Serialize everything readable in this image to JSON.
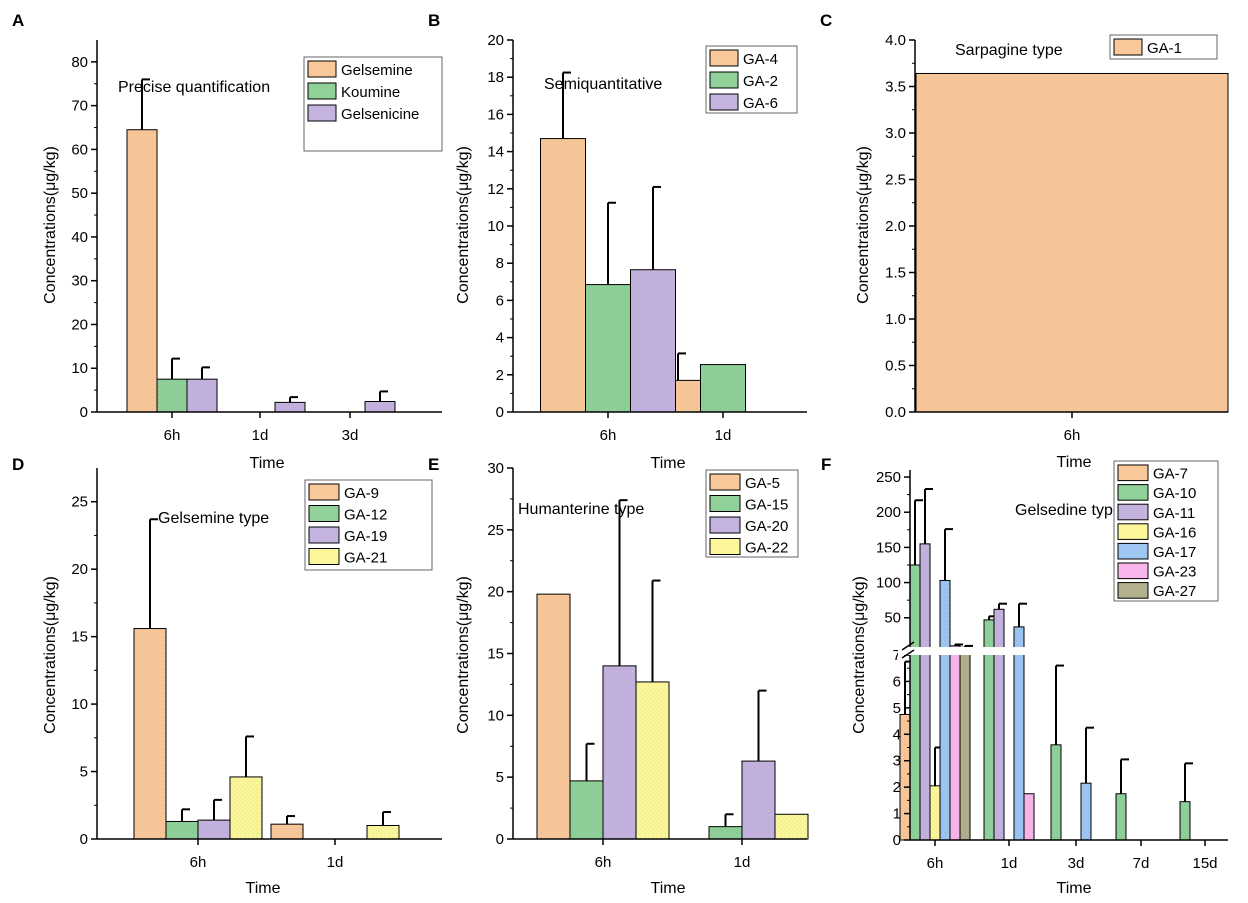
{
  "colors": {
    "orange": "#f9c89a",
    "green": "#8fd199",
    "purple": "#c5b3df",
    "yellow": "#fbf79a",
    "blue": "#9dc6f2",
    "pink": "#f8b6ec",
    "olive": "#b2b08d"
  },
  "chart_data": [
    {
      "panel_label": "A",
      "type": "bar",
      "title": "Precise quantification",
      "xlabel": "Time",
      "ylabel": "Concentrations(μg/kg)",
      "ylim": [
        0,
        85
      ],
      "yticks": [
        0,
        10,
        20,
        30,
        40,
        50,
        60,
        70,
        80
      ],
      "ytick_labels": [
        "0",
        "10",
        "20",
        "30",
        "40",
        "50",
        "60",
        "70",
        "80"
      ],
      "categories": [
        "6h",
        "1d",
        "3d"
      ],
      "series": [
        {
          "name": "Gelsemine",
          "color": "orange",
          "values": [
            64.5,
            null,
            null
          ],
          "errors": [
            11.5,
            null,
            null
          ]
        },
        {
          "name": "Koumine",
          "color": "green",
          "values": [
            7.5,
            null,
            null
          ],
          "errors": [
            4.7,
            null,
            null
          ]
        },
        {
          "name": "Gelsenicine",
          "color": "purple",
          "values": [
            7.5,
            2.2,
            2.4
          ],
          "errors": [
            2.7,
            1.2,
            2.3
          ]
        }
      ]
    },
    {
      "panel_label": "B",
      "type": "bar",
      "title": "Semiquantitative",
      "xlabel": "Time",
      "ylabel": "Concentrations(μg/kg)",
      "ylim": [
        0,
        20
      ],
      "yticks": [
        0,
        2,
        4,
        6,
        8,
        10,
        12,
        14,
        16,
        18,
        20
      ],
      "ytick_labels": [
        "0",
        "2",
        "4",
        "6",
        "8",
        "10",
        "12",
        "14",
        "16",
        "18",
        "20"
      ],
      "categories": [
        "6h",
        "1d"
      ],
      "series": [
        {
          "name": "GA-4",
          "color": "orange",
          "values": [
            14.7,
            1.7
          ],
          "errors": [
            3.55,
            1.45
          ]
        },
        {
          "name": "GA-2",
          "color": "green",
          "values": [
            6.85,
            2.55
          ],
          "errors": [
            4.4,
            null
          ]
        },
        {
          "name": "GA-6",
          "color": "purple",
          "values": [
            7.65,
            null
          ],
          "errors": [
            4.45,
            null
          ]
        }
      ]
    },
    {
      "panel_label": "C",
      "type": "bar",
      "title": "Sarpagine type",
      "xlabel": "Time",
      "ylabel": "Concentrations(μg/kg)",
      "ylim": [
        0,
        4.0
      ],
      "yticks": [
        0,
        0.5,
        1.0,
        1.5,
        2.0,
        2.5,
        3.0,
        3.5,
        4.0
      ],
      "ytick_labels": [
        "0.0",
        "0.5",
        "1.0",
        "1.5",
        "2.0",
        "2.5",
        "3.0",
        "3.5",
        "4.0"
      ],
      "categories": [
        "6h"
      ],
      "series": [
        {
          "name": "GA-1",
          "color": "orange",
          "values": [
            3.64
          ],
          "errors": [
            null
          ]
        }
      ]
    },
    {
      "panel_label": "D",
      "type": "bar",
      "title": "Gelsemine type",
      "xlabel": "Time",
      "ylabel": "Concentrations(μg/kg)",
      "ylim": [
        0,
        27.5
      ],
      "yticks": [
        0,
        5,
        10,
        15,
        20,
        25
      ],
      "ytick_labels": [
        "0",
        "5",
        "10",
        "15",
        "20",
        "25"
      ],
      "categories": [
        "6h",
        "1d"
      ],
      "series": [
        {
          "name": "GA-9",
          "color": "orange",
          "values": [
            15.6,
            1.1
          ],
          "errors": [
            8.1,
            0.6
          ]
        },
        {
          "name": "GA-12",
          "color": "green",
          "values": [
            1.3,
            null
          ],
          "errors": [
            0.9,
            null
          ]
        },
        {
          "name": "GA-19",
          "color": "purple",
          "values": [
            1.4,
            null
          ],
          "errors": [
            1.5,
            null
          ]
        },
        {
          "name": "GA-21",
          "color": "yellow",
          "values": [
            4.6,
            1.0
          ],
          "errors": [
            3.0,
            1.0
          ]
        }
      ]
    },
    {
      "panel_label": "E",
      "type": "bar",
      "title": "Humanterine type",
      "xlabel": "Time",
      "ylabel": "Concentrations(μg/kg)",
      "ylim": [
        0,
        30
      ],
      "yticks": [
        0,
        5,
        10,
        15,
        20,
        25,
        30
      ],
      "ytick_labels": [
        "0",
        "5",
        "10",
        "15",
        "20",
        "25",
        "30"
      ],
      "categories": [
        "6h",
        "1d"
      ],
      "series": [
        {
          "name": "GA-5",
          "color": "orange",
          "values": [
            19.8,
            null
          ],
          "errors": [
            null,
            null
          ]
        },
        {
          "name": "GA-15",
          "color": "green",
          "values": [
            4.7,
            1.0
          ],
          "errors": [
            3.0,
            1.0
          ]
        },
        {
          "name": "GA-20",
          "color": "purple",
          "values": [
            14.0,
            6.3
          ],
          "errors": [
            13.4,
            5.7
          ]
        },
        {
          "name": "GA-22",
          "color": "yellow",
          "values": [
            12.7,
            2.0
          ],
          "errors": [
            8.2,
            null
          ]
        }
      ]
    },
    {
      "panel_label": "F",
      "type": "bar",
      "title": "Gelsedine type",
      "xlabel": "Time",
      "ylabel": "Concentrations(μg/kg)",
      "axis_break": {
        "lower_range": [
          0,
          7
        ],
        "upper_range": [
          7,
          260
        ]
      },
      "yticks_lower": [
        0,
        1,
        2,
        3,
        4,
        5,
        6,
        7
      ],
      "ytick_labels_lower": [
        "0",
        "1",
        "2",
        "3",
        "4",
        "5",
        "6",
        "7"
      ],
      "yticks_upper": [
        50,
        100,
        150,
        200,
        250
      ],
      "ytick_labels_upper": [
        "50",
        "100",
        "150",
        "200",
        "250"
      ],
      "categories": [
        "6h",
        "1d",
        "3d",
        "7d",
        "15d"
      ],
      "series": [
        {
          "name": "GA-7",
          "color": "orange",
          "values": [
            4.75,
            null,
            null,
            null,
            null
          ],
          "errors": [
            2.0,
            null,
            null,
            null,
            null
          ]
        },
        {
          "name": "GA-10",
          "color": "green",
          "values": [
            125,
            47,
            3.6,
            1.75,
            1.45
          ],
          "errors": [
            92,
            5,
            3.0,
            1.3,
            1.45
          ]
        },
        {
          "name": "GA-11",
          "color": "purple",
          "values": [
            155,
            62,
            null,
            null,
            null
          ],
          "errors": [
            78,
            8,
            null,
            null,
            null
          ]
        },
        {
          "name": "GA-16",
          "color": "yellow",
          "values": [
            2.05,
            null,
            null,
            null,
            null
          ],
          "errors": [
            1.45,
            null,
            null,
            null,
            null
          ]
        },
        {
          "name": "GA-17",
          "color": "blue",
          "values": [
            103,
            37,
            2.15,
            null,
            null
          ],
          "errors": [
            73,
            33,
            2.1,
            null,
            null
          ]
        },
        {
          "name": "GA-23",
          "color": "pink",
          "values": [
            10,
            1.75,
            null,
            null,
            null
          ],
          "errors": [
            2,
            null,
            null,
            null,
            null
          ]
        },
        {
          "name": "GA-27",
          "color": "olive",
          "values": [
            8,
            null,
            null,
            null,
            null
          ],
          "errors": [
            2,
            null,
            null,
            null,
            null
          ]
        }
      ]
    }
  ]
}
